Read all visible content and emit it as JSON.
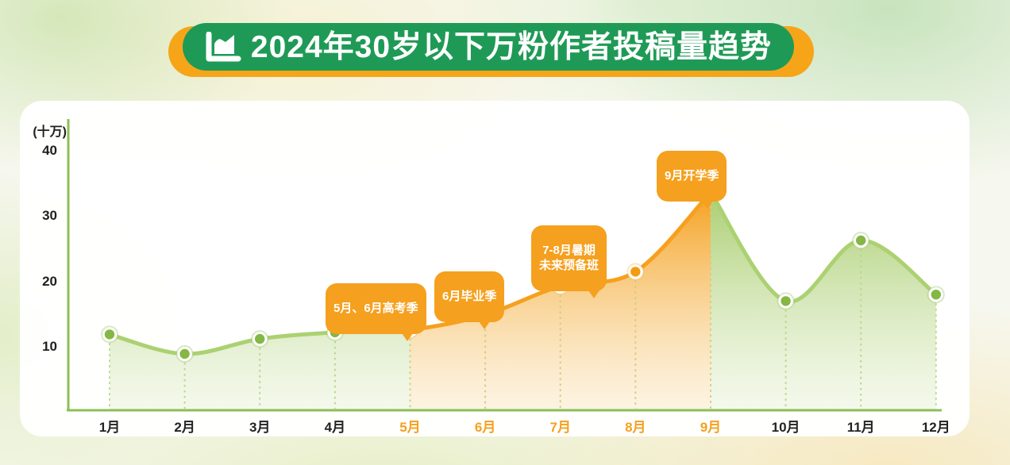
{
  "title": {
    "icon": "area-chart-icon",
    "text": "2024年30岁以下万粉作者投稿量趋势"
  },
  "chart_data": {
    "type": "area",
    "title": "2024年30岁以下万粉作者投稿量趋势",
    "unit_label": "(十万)",
    "categories": [
      "1月",
      "2月",
      "3月",
      "4月",
      "5月",
      "6月",
      "7月",
      "8月",
      "9月",
      "10月",
      "11月",
      "12月"
    ],
    "values": [
      12,
      9,
      11.3,
      12.3,
      12.7,
      15,
      19.4,
      21.6,
      33.8,
      17.1,
      26.4,
      18.1
    ],
    "yticks": [
      10,
      20,
      30,
      40
    ],
    "ylim": [
      0,
      44
    ],
    "grid": false,
    "legend": "none",
    "highlight_range": {
      "from": "5月",
      "to": "9月"
    },
    "annotations": [
      {
        "text": "5月、6月高考季",
        "target": "5月"
      },
      {
        "text": "6月毕业季",
        "target": "6月"
      },
      {
        "text": "7-8月暑期\n未来预备班",
        "target": "8月"
      },
      {
        "text": "9月开学季",
        "target": "9月"
      }
    ]
  },
  "colors": {
    "title_pill_green": "#1f9a56",
    "title_pill_orange": "#f6a519",
    "axis_green": "#8cbf55",
    "line_green": "#abd171",
    "point_green": "#84b743",
    "area_green_top": "#a3ca64",
    "highlight_orange": "#f5a01e",
    "point_orange": "#f39c10",
    "badge_orange": "#f5a01e",
    "tick_text": "#202020"
  }
}
